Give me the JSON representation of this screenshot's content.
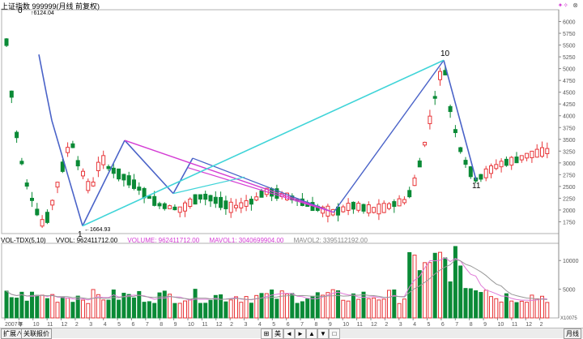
{
  "window": {
    "title": "上证指数 999999(月线 前复权)",
    "top_icons": [
      "menu-icon",
      "close-icon"
    ]
  },
  "chart_data": {
    "type": "candlestick",
    "price_axis": {
      "min": 1500,
      "max": 6250,
      "ticks": [
        1750,
        2000,
        2250,
        2500,
        2750,
        3000,
        3250,
        3500,
        3750,
        4000,
        4250,
        4500,
        4750,
        5000,
        5250,
        5500,
        5750,
        6000
      ]
    },
    "annotations": {
      "high_label": "6124.04",
      "low_label": "1664.93",
      "wave_points": [
        {
          "label": "0",
          "price": 6124
        },
        {
          "label": "1",
          "price": 1664
        },
        {
          "label": "10",
          "price": 5178
        },
        {
          "label": "11",
          "price": 2638
        }
      ]
    },
    "x_ticks": [
      "2007年",
      "9",
      "10",
      "11",
      "12",
      "2",
      "3",
      "4",
      "5",
      "6",
      "7",
      "8",
      "9",
      "10",
      "11",
      "12",
      "2",
      "3",
      "4",
      "5",
      "6",
      "7",
      "8",
      "9",
      "10",
      "11",
      "12",
      "2",
      "3",
      "4",
      "5",
      "6",
      "7",
      "8",
      "9",
      "10",
      "11",
      "12",
      "2"
    ],
    "volume": {
      "label": "VOL-TDX(5,10)",
      "vvol": "VVOL: 962411712.00",
      "volume": "VOLUME: 962411712.00",
      "mavol1": "MAVOL1: 3040699904.00",
      "mavol2": "MAVOL2: 3395112192.00",
      "axis_ticks": [
        5000,
        10000
      ],
      "unit_label": "X10075"
    }
  },
  "bottom_bar": {
    "expand_label": "扩展∧",
    "related_label": "关联报价",
    "nav_buttons": [
      "⊞",
      "美",
      "◄",
      "►",
      "▲",
      "▼",
      "□"
    ],
    "period_label": "月线"
  },
  "colors": {
    "up": "#e8373a",
    "down": "#0a8a36",
    "wave_blue": "#4a63c8",
    "wave_cyan": "#3fd4d8",
    "wave_magenta": "#d43cd4",
    "ma": "#e07ad8"
  }
}
